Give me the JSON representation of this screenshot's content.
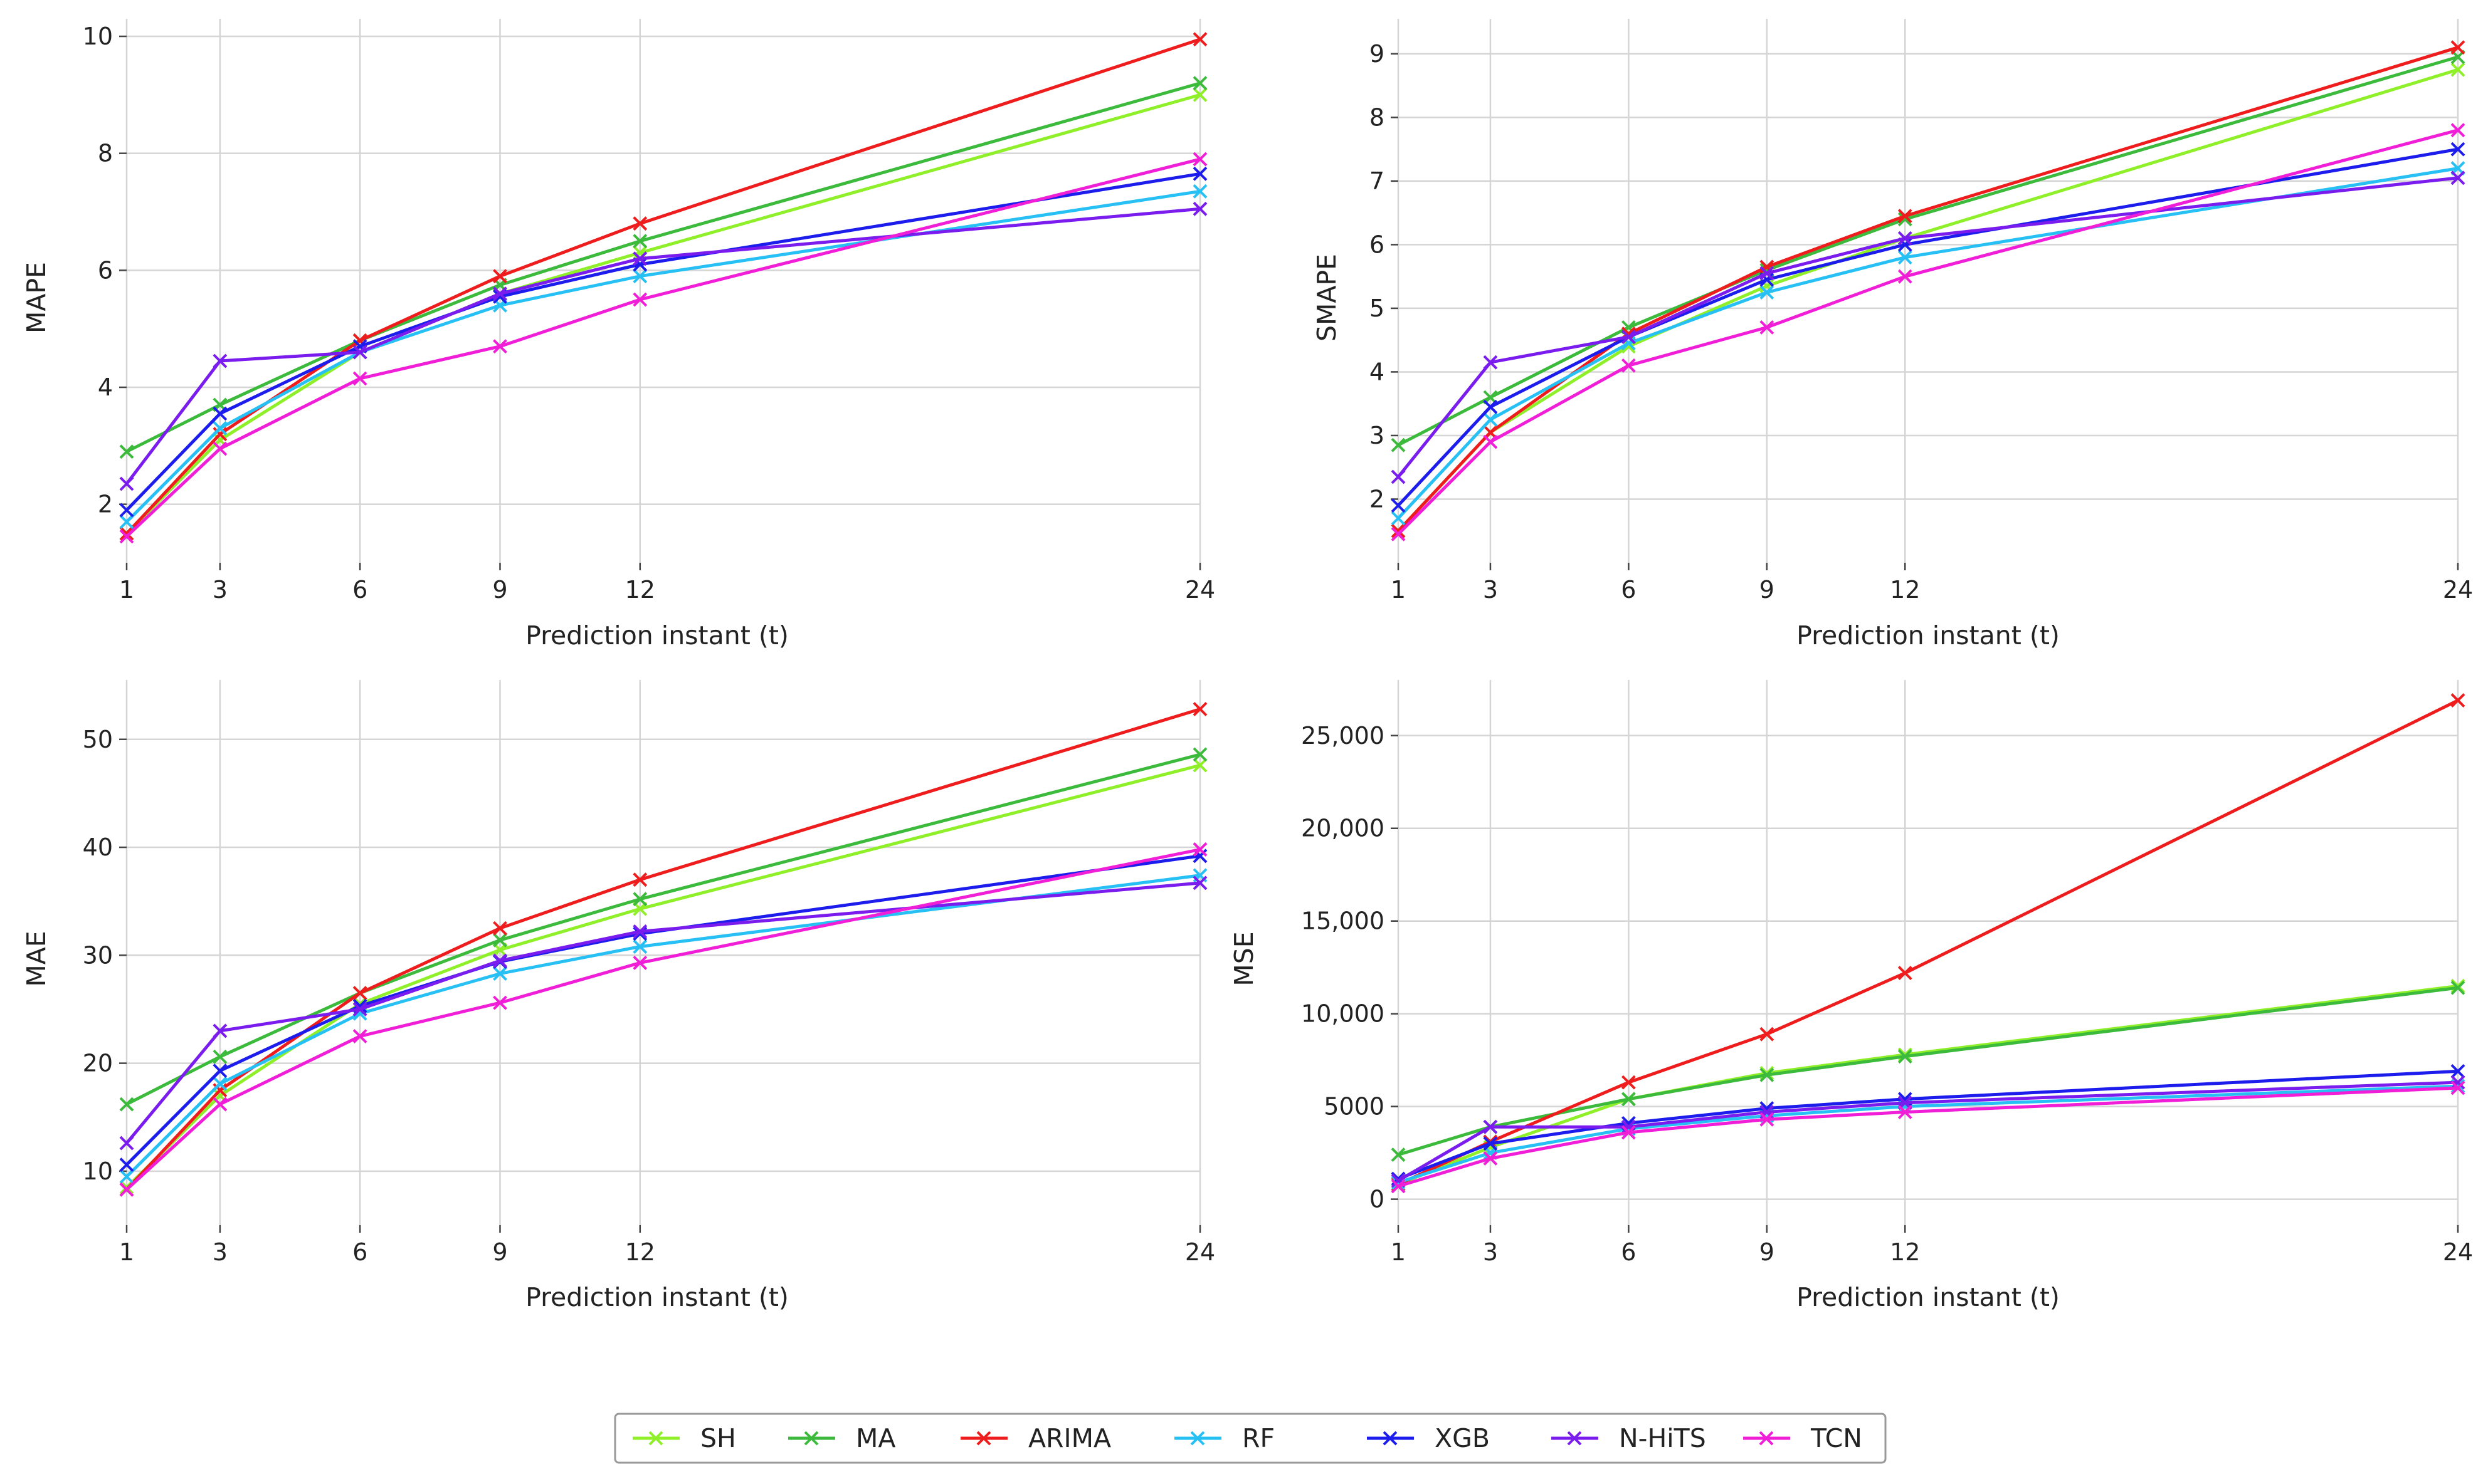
{
  "chart_data": [
    {
      "type": "line",
      "xlabel": "Prediction instant (t)",
      "ylabel": "MAPE",
      "x": [
        1,
        3,
        6,
        9,
        12,
        24
      ],
      "xlim": [
        1,
        24
      ],
      "ylim": [
        1.0,
        10.3
      ],
      "yticks": [
        2,
        4,
        6,
        8,
        10
      ],
      "ytick_labels": [
        "2",
        "4",
        "6",
        "8",
        "10"
      ],
      "series": [
        {
          "name": "SH",
          "values": [
            1.5,
            3.1,
            4.6,
            5.6,
            6.3,
            9.0
          ]
        },
        {
          "name": "MA",
          "values": [
            2.9,
            3.7,
            4.8,
            5.75,
            6.5,
            9.2
          ]
        },
        {
          "name": "ARIMA",
          "values": [
            1.5,
            3.2,
            4.8,
            5.9,
            6.8,
            9.95
          ]
        },
        {
          "name": "RF",
          "values": [
            1.7,
            3.3,
            4.6,
            5.4,
            5.9,
            7.35
          ]
        },
        {
          "name": "XGB",
          "values": [
            1.9,
            3.55,
            4.7,
            5.55,
            6.1,
            7.65
          ]
        },
        {
          "name": "N-HiTS",
          "values": [
            2.35,
            4.45,
            4.6,
            5.6,
            6.2,
            7.05
          ]
        },
        {
          "name": "TCN",
          "values": [
            1.45,
            2.95,
            4.15,
            4.7,
            5.5,
            7.9
          ]
        }
      ]
    },
    {
      "type": "line",
      "xlabel": "Prediction instant (t)",
      "ylabel": "SMAPE",
      "x": [
        1,
        3,
        6,
        9,
        12,
        24
      ],
      "xlim": [
        1,
        24
      ],
      "ylim": [
        1.0,
        9.55
      ],
      "yticks": [
        2,
        3,
        4,
        5,
        6,
        7,
        8,
        9
      ],
      "ytick_labels": [
        "2",
        "3",
        "4",
        "5",
        "6",
        "7",
        "8",
        "9"
      ],
      "series": [
        {
          "name": "SH",
          "values": [
            1.5,
            3.05,
            4.4,
            5.35,
            6.1,
            8.75
          ]
        },
        {
          "name": "MA",
          "values": [
            2.85,
            3.6,
            4.7,
            5.6,
            6.4,
            8.95
          ]
        },
        {
          "name": "ARIMA",
          "values": [
            1.5,
            3.05,
            4.6,
            5.65,
            6.45,
            9.1
          ]
        },
        {
          "name": "RF",
          "values": [
            1.7,
            3.25,
            4.45,
            5.25,
            5.8,
            7.2
          ]
        },
        {
          "name": "XGB",
          "values": [
            1.9,
            3.45,
            4.55,
            5.45,
            6.0,
            7.5
          ]
        },
        {
          "name": "N-HiTS",
          "values": [
            2.35,
            4.15,
            4.55,
            5.55,
            6.1,
            7.05
          ]
        },
        {
          "name": "TCN",
          "values": [
            1.45,
            2.9,
            4.1,
            4.7,
            5.5,
            7.8
          ]
        }
      ]
    },
    {
      "type": "line",
      "xlabel": "Prediction instant (t)",
      "ylabel": "MAE",
      "x": [
        1,
        3,
        6,
        9,
        12,
        24
      ],
      "xlim": [
        1,
        24
      ],
      "ylim": [
        5.0,
        55.5
      ],
      "yticks": [
        10,
        20,
        30,
        40,
        50
      ],
      "ytick_labels": [
        "10",
        "20",
        "30",
        "40",
        "50"
      ],
      "series": [
        {
          "name": "SH",
          "values": [
            8.5,
            17.0,
            25.5,
            30.5,
            34.3,
            47.6
          ]
        },
        {
          "name": "MA",
          "values": [
            16.2,
            20.6,
            26.5,
            31.4,
            35.2,
            48.6
          ]
        },
        {
          "name": "ARIMA",
          "values": [
            8.3,
            17.5,
            26.5,
            32.5,
            37.0,
            52.8
          ]
        },
        {
          "name": "RF",
          "values": [
            9.5,
            18.1,
            24.6,
            28.3,
            30.8,
            37.4
          ]
        },
        {
          "name": "XGB",
          "values": [
            10.6,
            19.3,
            25.3,
            29.4,
            32.0,
            39.2
          ]
        },
        {
          "name": "N-HiTS",
          "values": [
            12.6,
            23.0,
            25.0,
            29.5,
            32.2,
            36.7
          ]
        },
        {
          "name": "TCN",
          "values": [
            8.3,
            16.2,
            22.5,
            25.6,
            29.3,
            39.8
          ]
        }
      ]
    },
    {
      "type": "line",
      "xlabel": "Prediction instant (t)",
      "ylabel": "MSE",
      "x": [
        1,
        3,
        6,
        9,
        12,
        24
      ],
      "xlim": [
        1,
        24
      ],
      "ylim": [
        -1400,
        28000
      ],
      "yticks": [
        0,
        5000,
        10000,
        15000,
        20000,
        25000
      ],
      "ytick_labels": [
        "0",
        "5000",
        "10,000",
        "15,000",
        "20,000",
        "25,000"
      ],
      "series": [
        {
          "name": "SH",
          "values": [
            800,
            2800,
            5400,
            6800,
            7800,
            11500
          ]
        },
        {
          "name": "MA",
          "values": [
            2400,
            3900,
            5400,
            6700,
            7700,
            11400
          ]
        },
        {
          "name": "ARIMA",
          "values": [
            800,
            3100,
            6300,
            8900,
            12200,
            26900
          ]
        },
        {
          "name": "RF",
          "values": [
            900,
            2500,
            3800,
            4500,
            5000,
            6100
          ]
        },
        {
          "name": "XGB",
          "values": [
            1100,
            3000,
            4100,
            4900,
            5400,
            6900
          ]
        },
        {
          "name": "N-HiTS",
          "values": [
            1000,
            3900,
            3900,
            4700,
            5200,
            6300
          ]
        },
        {
          "name": "TCN",
          "values": [
            700,
            2200,
            3600,
            4300,
            4700,
            6000
          ]
        }
      ]
    }
  ],
  "legend": {
    "placement": "bottom-center",
    "entries": [
      "SH",
      "MA",
      "ARIMA",
      "RF",
      "XGB",
      "N-HiTS",
      "TCN"
    ]
  },
  "colors": {
    "SH": "#8ff02a",
    "MA": "#3cba3c",
    "ARIMA": "#ee1c1c",
    "RF": "#27c0f5",
    "XGB": "#1c1ced",
    "N-HiTS": "#7a1ced",
    "TCN": "#f01ed7"
  }
}
